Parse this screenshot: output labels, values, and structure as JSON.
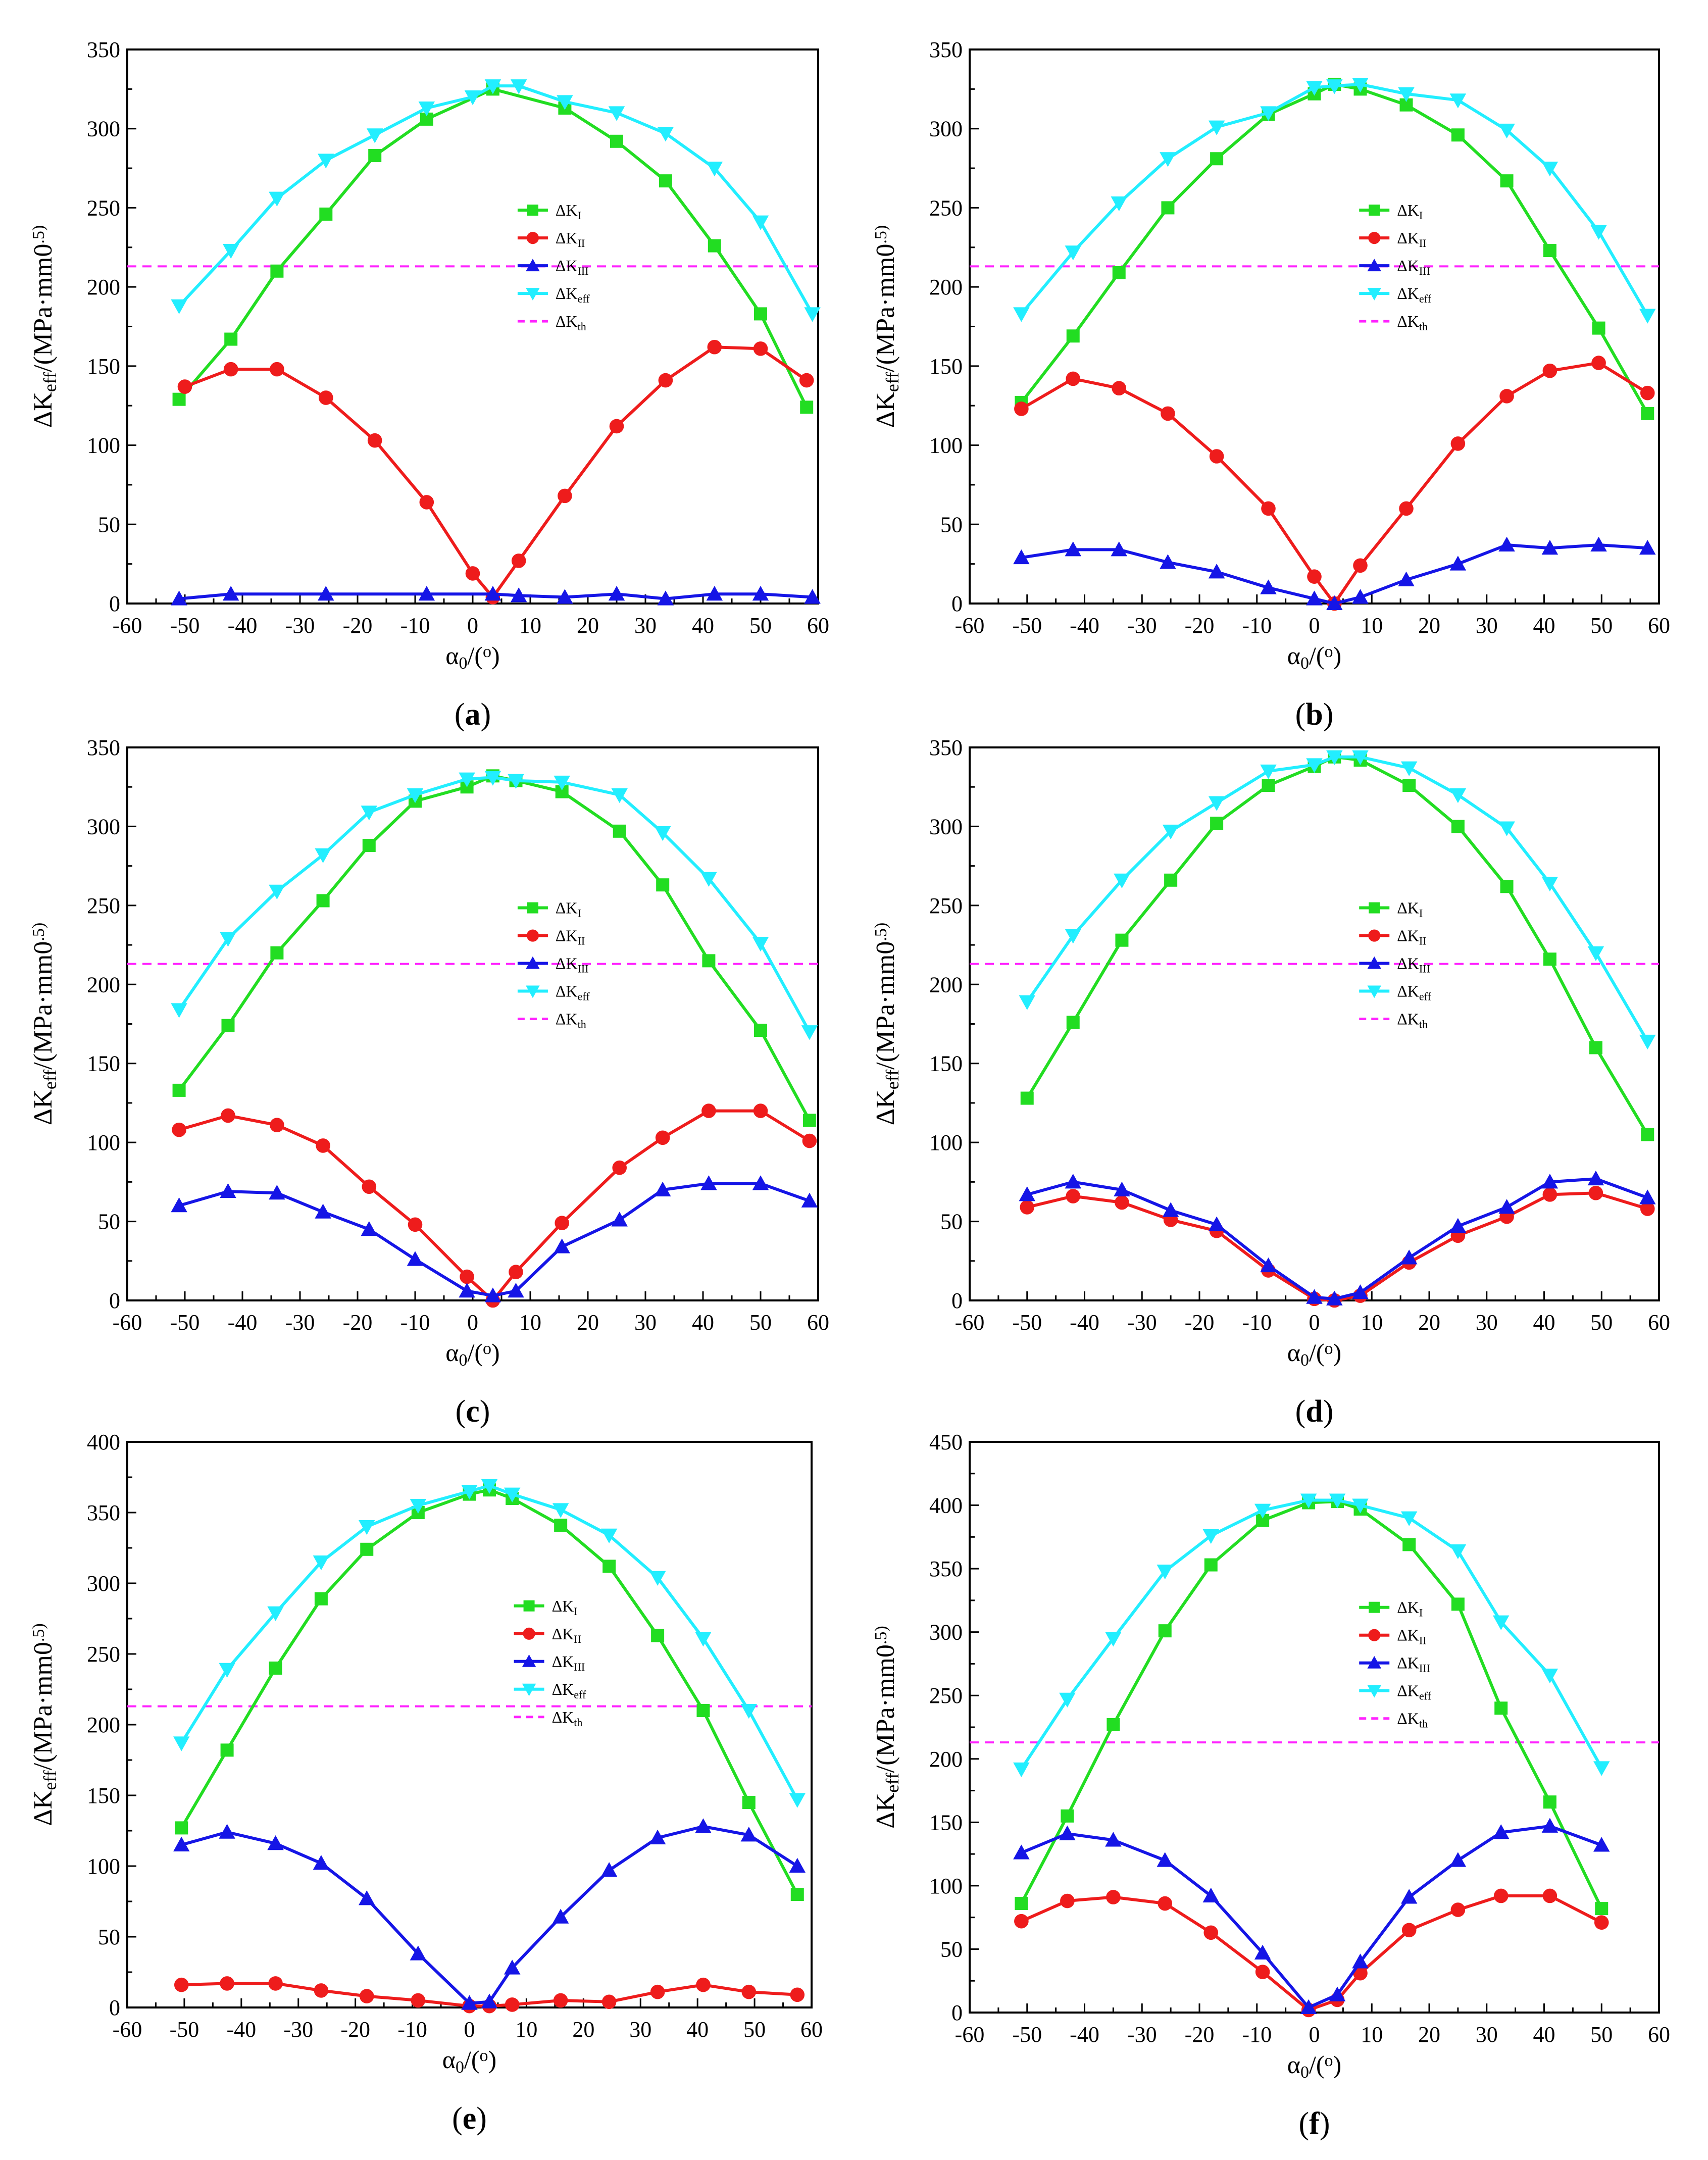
{
  "colors": {
    "dK_I": "#22dd22",
    "dK_II": "#ee1c1c",
    "dK_III": "#1515e6",
    "dK_eff": "#22eeff",
    "dK_th": "#ff22ff"
  },
  "chart_data": [
    {
      "type": "line",
      "panel_label": "(a)",
      "panel_letter": "a",
      "xlabel": "α0/(o)",
      "ylabel": "ΔKeff/(MPa·mm0.5)",
      "xlim": [
        -60,
        60
      ],
      "ylim": [
        0,
        350
      ],
      "xticks": [
        -60,
        -50,
        -40,
        -30,
        -20,
        -10,
        0,
        10,
        20,
        30,
        40,
        50,
        60
      ],
      "yticks": [
        0,
        50,
        100,
        150,
        200,
        250,
        300,
        350
      ],
      "threshold": 213,
      "legend_position": "center",
      "series": [
        {
          "key": "dK_I",
          "name": "ΔKI",
          "marker": "square",
          "x": [
            -51,
            -42,
            -34,
            -25.5,
            -17,
            -8,
            3.5,
            16,
            25,
            33.5,
            42,
            50,
            58
          ],
          "y": [
            129,
            167,
            210,
            246,
            283,
            306,
            325,
            313,
            292,
            267,
            226,
            183,
            124
          ]
        },
        {
          "key": "dK_II",
          "name": "ΔKII",
          "marker": "circle",
          "x": [
            -50,
            -42,
            -34,
            -25.5,
            -17,
            -8,
            0,
            3.5,
            8,
            16,
            25,
            33.5,
            42,
            50,
            58
          ],
          "y": [
            137,
            148,
            148,
            130,
            103,
            64,
            19,
            4,
            27,
            68,
            112,
            141,
            162,
            161,
            141
          ]
        },
        {
          "key": "dK_III",
          "name": "ΔKIII",
          "marker": "triangle-up",
          "x": [
            -51,
            -42,
            -25.5,
            -8,
            3.5,
            8,
            16,
            25,
            33.5,
            42,
            50,
            59
          ],
          "y": [
            3,
            6,
            6,
            6,
            6,
            5,
            4,
            6,
            3,
            6,
            6,
            4
          ]
        },
        {
          "key": "dK_eff",
          "name": "ΔKeff",
          "marker": "triangle-down",
          "x": [
            -51,
            -42,
            -34,
            -25.5,
            -17,
            -8,
            0,
            3.5,
            8,
            16,
            25,
            33.5,
            42,
            50,
            59
          ],
          "y": [
            188,
            223,
            256,
            280,
            296,
            313,
            320,
            327,
            327,
            317,
            310,
            297,
            275,
            241,
            183
          ]
        }
      ],
      "threshold_name": "ΔKth"
    },
    {
      "type": "line",
      "panel_label": "(b)",
      "panel_letter": "b",
      "xlabel": "α0/(o)",
      "ylabel": "ΔKeff/(MPa·mm0.5)",
      "xlim": [
        -60,
        60
      ],
      "ylim": [
        0,
        350
      ],
      "xticks": [
        -60,
        -50,
        -40,
        -30,
        -20,
        -10,
        0,
        10,
        20,
        30,
        40,
        50,
        60
      ],
      "yticks": [
        0,
        50,
        100,
        150,
        200,
        250,
        300,
        350
      ],
      "threshold": 213,
      "legend_position": "center",
      "series": [
        {
          "key": "dK_I",
          "name": "ΔKI",
          "marker": "square",
          "x": [
            -51,
            -42,
            -34,
            -25.5,
            -17,
            -8,
            0,
            3.5,
            8,
            16,
            25,
            33.5,
            41,
            49.5,
            58
          ],
          "y": [
            127,
            169,
            209,
            250,
            281,
            309,
            322,
            328,
            325,
            315,
            296,
            267,
            223,
            174,
            120
          ]
        },
        {
          "key": "dK_II",
          "name": "ΔKII",
          "marker": "circle",
          "x": [
            -51,
            -42,
            -34,
            -25.5,
            -17,
            -8,
            0,
            3.5,
            8,
            16,
            25,
            33.5,
            41,
            49.5,
            58
          ],
          "y": [
            123,
            142,
            136,
            120,
            93,
            60,
            17,
            0,
            24,
            60,
            101,
            131,
            147,
            152,
            133
          ]
        },
        {
          "key": "dK_III",
          "name": "ΔKIII",
          "marker": "triangle-up",
          "x": [
            -51,
            -42,
            -34,
            -25.5,
            -17,
            -8,
            0,
            3.5,
            8,
            16,
            25,
            33.5,
            41,
            49.5,
            58
          ],
          "y": [
            29,
            34,
            34,
            26,
            20,
            10,
            3,
            0,
            4,
            15,
            25,
            37,
            35,
            37,
            35
          ]
        },
        {
          "key": "dK_eff",
          "name": "ΔKeff",
          "marker": "triangle-down",
          "x": [
            -51,
            -42,
            -34,
            -25.5,
            -17,
            -8,
            0,
            3.5,
            8,
            16,
            25,
            33.5,
            41,
            49.5,
            58
          ],
          "y": [
            183,
            222,
            253,
            281,
            301,
            310,
            326,
            327,
            328,
            322,
            318,
            299,
            275,
            235,
            182
          ]
        }
      ],
      "threshold_name": "ΔKth"
    },
    {
      "type": "line",
      "panel_label": "(c)",
      "panel_letter": "c",
      "xlabel": "α0/(o)",
      "ylabel": "ΔKeff/(MPa·mm0.5)",
      "xlim": [
        -60,
        60
      ],
      "ylim": [
        0,
        350
      ],
      "xticks": [
        -60,
        -50,
        -40,
        -30,
        -20,
        -10,
        0,
        10,
        20,
        30,
        40,
        50,
        60
      ],
      "yticks": [
        0,
        50,
        100,
        150,
        200,
        250,
        300,
        350
      ],
      "threshold": 213,
      "legend_position": "center",
      "series": [
        {
          "key": "dK_I",
          "name": "ΔKI",
          "marker": "square",
          "x": [
            -51,
            -42.5,
            -34,
            -26,
            -18,
            -10,
            -1,
            3.5,
            7.5,
            15.5,
            25.5,
            33,
            41,
            50,
            58.5
          ],
          "y": [
            133,
            174,
            220,
            253,
            288,
            316,
            325,
            332,
            329,
            322,
            297,
            263,
            215,
            171,
            114
          ]
        },
        {
          "key": "dK_II",
          "name": "ΔKII",
          "marker": "circle",
          "x": [
            -51,
            -42.5,
            -34,
            -26,
            -18,
            -10,
            -1,
            3.5,
            7.5,
            15.5,
            25.5,
            33,
            41,
            50,
            58.5
          ],
          "y": [
            108,
            117,
            111,
            98,
            72,
            48,
            15,
            0,
            18,
            49,
            84,
            103,
            120,
            120,
            101
          ]
        },
        {
          "key": "dK_III",
          "name": "ΔKIII",
          "marker": "triangle-up",
          "x": [
            -51,
            -42.5,
            -34,
            -26,
            -18,
            -10,
            -1,
            3.5,
            7.5,
            15.5,
            25.5,
            33,
            41,
            50,
            58.5
          ],
          "y": [
            60,
            69,
            68,
            56,
            45,
            26,
            6,
            3,
            6,
            34,
            51,
            70,
            74,
            74,
            63
          ]
        },
        {
          "key": "dK_eff",
          "name": "ΔKeff",
          "marker": "triangle-down",
          "x": [
            -51,
            -42.5,
            -34,
            -26,
            -18,
            -10,
            -1,
            3.5,
            7.5,
            15.5,
            25.5,
            33,
            41,
            50,
            58.5
          ],
          "y": [
            184,
            229,
            259,
            282,
            309,
            320,
            330,
            331,
            329,
            328,
            320,
            296,
            267,
            226,
            170
          ]
        }
      ],
      "threshold_name": "ΔKth"
    },
    {
      "type": "line",
      "panel_label": "(d)",
      "panel_letter": "d",
      "xlabel": "α0/(o)",
      "ylabel": "ΔKeff/(MPa·mm0.5)",
      "xlim": [
        -60,
        60
      ],
      "ylim": [
        0,
        350
      ],
      "xticks": [
        -60,
        -50,
        -40,
        -30,
        -20,
        -10,
        0,
        10,
        20,
        30,
        40,
        50,
        60
      ],
      "yticks": [
        0,
        50,
        100,
        150,
        200,
        250,
        300,
        350
      ],
      "threshold": 213,
      "legend_position": "center",
      "series": [
        {
          "key": "dK_I",
          "name": "ΔKI",
          "marker": "square",
          "x": [
            -50,
            -42,
            -33.5,
            -25,
            -17,
            -8,
            0,
            3.5,
            8,
            16.5,
            25,
            33.5,
            41,
            49,
            58
          ],
          "y": [
            128,
            176,
            228,
            266,
            302,
            326,
            338,
            344,
            342,
            326,
            300,
            262,
            216,
            160,
            105
          ]
        },
        {
          "key": "dK_II",
          "name": "ΔKII",
          "marker": "circle",
          "x": [
            -50,
            -42,
            -33.5,
            -25,
            -17,
            -8,
            0,
            3.5,
            8,
            16.5,
            25,
            33.5,
            41,
            49,
            58
          ],
          "y": [
            59,
            66,
            62,
            51,
            44,
            19,
            1,
            0,
            3,
            24,
            41,
            53,
            67,
            68,
            58
          ]
        },
        {
          "key": "dK_III",
          "name": "ΔKIII",
          "marker": "triangle-up",
          "x": [
            -50,
            -42,
            -33.5,
            -25,
            -17,
            -8,
            0,
            3.5,
            8,
            16.5,
            25,
            33.5,
            41,
            49,
            58
          ],
          "y": [
            67,
            75,
            70,
            57,
            48,
            22,
            2,
            1,
            5,
            27,
            47,
            59,
            75,
            77,
            65
          ]
        },
        {
          "key": "dK_eff",
          "name": "ΔKeff",
          "marker": "triangle-down",
          "x": [
            -50,
            -42,
            -33.5,
            -25,
            -17,
            -8,
            0,
            3.5,
            8,
            16.5,
            25,
            33.5,
            41,
            49,
            58
          ],
          "y": [
            189,
            231,
            266,
            297,
            315,
            335,
            339,
            344,
            344,
            337,
            320,
            299,
            264,
            220,
            164
          ]
        }
      ],
      "threshold_name": "ΔKth"
    },
    {
      "type": "line",
      "panel_label": "(e)",
      "panel_letter": "e",
      "xlabel": "α0/(o)",
      "ylabel": "ΔKeff/(MPa·mm0.5)",
      "xlim": [
        -60,
        60
      ],
      "ylim": [
        0,
        400
      ],
      "xticks": [
        -60,
        -50,
        -40,
        -30,
        -20,
        -10,
        0,
        10,
        20,
        30,
        40,
        50,
        60
      ],
      "yticks": [
        0,
        50,
        100,
        150,
        200,
        250,
        300,
        350,
        400
      ],
      "threshold": 213,
      "legend_position": "center",
      "series": [
        {
          "key": "dK_I",
          "name": "ΔKI",
          "marker": "square",
          "x": [
            -50.5,
            -42.5,
            -34,
            -26,
            -18,
            -9,
            0,
            3.5,
            7.5,
            16,
            24.5,
            33,
            41,
            49,
            57.5
          ],
          "y": [
            127,
            182,
            240,
            289,
            324,
            350,
            363,
            366,
            360,
            341,
            312,
            263,
            210,
            145,
            80
          ]
        },
        {
          "key": "dK_II",
          "name": "ΔKII",
          "marker": "circle",
          "x": [
            -50.5,
            -42.5,
            -34,
            -26,
            -18,
            -9,
            0,
            3.5,
            7.5,
            16,
            24.5,
            33,
            41,
            49,
            57.5
          ],
          "y": [
            16,
            17,
            17,
            12,
            8,
            5,
            1,
            1,
            2,
            5,
            4,
            11,
            16,
            11,
            9
          ]
        },
        {
          "key": "dK_III",
          "name": "ΔKIII",
          "marker": "triangle-up",
          "x": [
            -50.5,
            -42.5,
            -34,
            -26,
            -18,
            -9,
            0,
            3.5,
            7.5,
            16,
            24.5,
            33,
            41,
            49,
            57.5
          ],
          "y": [
            115,
            124,
            116,
            102,
            77,
            38,
            3,
            4,
            28,
            64,
            97,
            120,
            128,
            122,
            100
          ]
        },
        {
          "key": "dK_eff",
          "name": "ΔKeff",
          "marker": "triangle-down",
          "x": [
            -50.5,
            -42.5,
            -34,
            -26,
            -18,
            -9,
            0,
            3.5,
            7.5,
            16,
            24.5,
            33,
            41,
            49,
            57.5
          ],
          "y": [
            187,
            239,
            279,
            315,
            340,
            355,
            365,
            369,
            363,
            352,
            334,
            304,
            261,
            210,
            147
          ]
        }
      ],
      "threshold_name": "ΔKth"
    },
    {
      "type": "line",
      "panel_label": "(f)",
      "panel_letter": "f",
      "xlabel": "α0/(o)",
      "ylabel": "ΔKeff/(MPa·mm0.5)",
      "xlim": [
        -60,
        60
      ],
      "ylim": [
        0,
        450
      ],
      "xticks": [
        -60,
        -50,
        -40,
        -30,
        -20,
        -10,
        0,
        10,
        20,
        30,
        40,
        50,
        60
      ],
      "yticks": [
        0,
        50,
        100,
        150,
        200,
        250,
        300,
        350,
        400,
        450
      ],
      "threshold": 213,
      "legend_position": "center",
      "series": [
        {
          "key": "dK_I",
          "name": "ΔKI",
          "marker": "square",
          "x": [
            -51,
            -43,
            -35,
            -26,
            -18,
            -9,
            -1,
            4,
            8,
            16.5,
            25,
            32.5,
            41,
            50
          ],
          "y": [
            86,
            155,
            227,
            301,
            353,
            388,
            402,
            403,
            397,
            369,
            322,
            240,
            166,
            82
          ]
        },
        {
          "key": "dK_II",
          "name": "ΔKII",
          "marker": "circle",
          "x": [
            -51,
            -43,
            -35,
            -26,
            -18,
            -9,
            -1,
            4,
            8,
            16.5,
            25,
            32.5,
            41,
            50
          ],
          "y": [
            72,
            88,
            91,
            86,
            63,
            32,
            2,
            10,
            31,
            65,
            81,
            92,
            92,
            71
          ]
        },
        {
          "key": "dK_III",
          "name": "ΔKIII",
          "marker": "triangle-up",
          "x": [
            -51,
            -43,
            -35,
            -26,
            -18,
            -9,
            -1,
            4,
            8,
            16.5,
            25,
            32.5,
            41,
            50
          ],
          "y": [
            126,
            141,
            136,
            120,
            92,
            47,
            4,
            14,
            40,
            91,
            120,
            142,
            147,
            132
          ]
        },
        {
          "key": "dK_eff",
          "name": "ΔKeff",
          "marker": "triangle-down",
          "x": [
            -51,
            -43,
            -35,
            -26,
            -18,
            -9,
            -1,
            4,
            8,
            16.5,
            25,
            32.5,
            41,
            50
          ],
          "y": [
            192,
            247,
            295,
            348,
            376,
            396,
            404,
            404,
            400,
            390,
            364,
            308,
            266,
            193
          ]
        }
      ],
      "threshold_name": "ΔKth"
    }
  ]
}
